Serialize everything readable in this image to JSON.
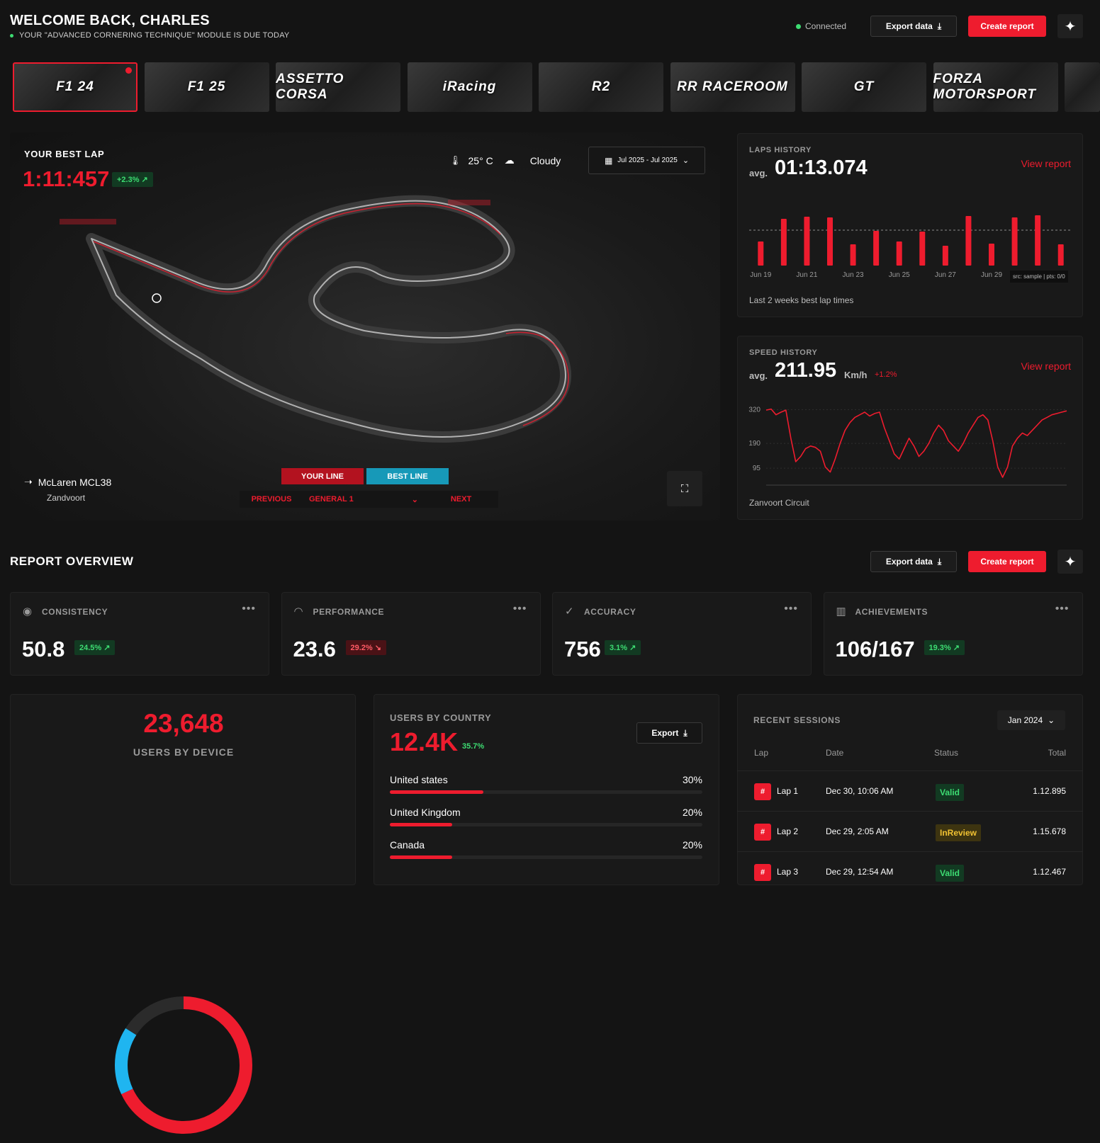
{
  "header": {
    "title": "WELCOME BACK, CHARLES",
    "subtitle": "YOUR \"ADVANCED CORNERING TECHNIQUE\" MODULE IS DUE TODAY",
    "status": "Connected",
    "export_label": "Export data",
    "create_label": "Create report"
  },
  "games": [
    "F1 24",
    "F1 25",
    "ASSETTO CORSA",
    "iRacing",
    "R2",
    "RR RACEROOM",
    "GT",
    "FORZA MOTORSPORT"
  ],
  "best_lap": {
    "title": "YOUR BEST LAP",
    "time": "1:11:457",
    "delta": "+2.3% ↗",
    "temperature": "25° C",
    "weather": "Cloudy",
    "date_range": "Jul 2025 - Jul 2025",
    "car": "McLaren MCL38",
    "circuit": "Zandvoort",
    "your_line": "YOUR LINE",
    "best_line": "BEST LINE",
    "previous": "PREVIOUS",
    "general": "GENERAL 1",
    "next": "NEXT"
  },
  "laps_history": {
    "title": "LAPS HISTORY",
    "avg_label": "avg.",
    "avg_value": "01:13.074",
    "view_report": "View report",
    "footer": "Last 2 weeks best lap times",
    "source": "src: sample | pts: 0/0",
    "chart_data": {
      "type": "bar",
      "x_tick_labels": [
        "Jun 19",
        "Jun 21",
        "Jun 23",
        "Jun 25",
        "Jun 27",
        "Jun 29"
      ],
      "values": [
        34,
        66,
        69,
        68,
        30,
        49,
        34,
        48,
        28,
        70,
        31,
        68,
        71,
        30
      ],
      "ylim": [
        0,
        80
      ],
      "reference_line": 50
    }
  },
  "speed_history": {
    "title": "SPEED HISTORY",
    "avg_label": "avg.",
    "avg_value": "211.95",
    "unit": "Km/h",
    "delta": "+1.2%",
    "view_report": "View report",
    "footer": "Zanvoort Circuit",
    "chart_data": {
      "type": "line",
      "y_tick_labels": [
        "320",
        "190",
        "95"
      ],
      "ylim": [
        30,
        340
      ],
      "values": [
        318,
        322,
        300,
        310,
        318,
        210,
        120,
        140,
        170,
        180,
        175,
        160,
        100,
        80,
        130,
        190,
        240,
        270,
        290,
        300,
        310,
        295,
        305,
        310,
        250,
        200,
        150,
        130,
        170,
        210,
        180,
        140,
        160,
        190,
        230,
        260,
        240,
        200,
        180,
        160,
        190,
        230,
        260,
        290,
        300,
        280,
        200,
        100,
        60,
        100,
        180,
        210,
        230,
        220,
        240,
        260,
        280,
        290,
        300,
        305,
        310,
        315
      ]
    }
  },
  "report_overview": {
    "title": "REPORT OVERVIEW",
    "export_label": "Export data",
    "create_label": "Create report",
    "stats": [
      {
        "label": "CONSISTENCY",
        "icon": "eye-icon",
        "glyph": "◉",
        "value": "50.8",
        "delta": "24.5% ↗",
        "trend": "up"
      },
      {
        "label": "PERFORMANCE",
        "icon": "gauge-icon",
        "glyph": "◠",
        "value": "23.6",
        "delta": "29.2% ↘",
        "trend": "down"
      },
      {
        "label": "ACCURACY",
        "icon": "check-circle-icon",
        "glyph": "✓",
        "value": "756",
        "delta": "3.1% ↗",
        "trend": "up"
      },
      {
        "label": "ACHIEVEMENTS",
        "icon": "bar-chart-icon",
        "glyph": "▥",
        "value": "106/167",
        "delta": "19.3% ↗",
        "trend": "up"
      }
    ]
  },
  "users_by_device": {
    "total": "23,648",
    "label": "USERS BY DEVICE",
    "segments": [
      {
        "color": "#ee1c2e",
        "fraction": 0.68
      },
      {
        "color": "#1fb5f0",
        "fraction": 0.16
      },
      {
        "color": "#2b2b2b",
        "fraction": 0.16
      }
    ]
  },
  "users_by_country": {
    "title": "USERS BY COUNTRY",
    "total": "12.4K",
    "delta": "35.7%",
    "export_label": "Export",
    "rows": [
      {
        "name": "United states",
        "pct": "30%",
        "fraction": 0.3
      },
      {
        "name": "United Kingdom",
        "pct": "20%",
        "fraction": 0.2
      },
      {
        "name": "Canada",
        "pct": "20%",
        "fraction": 0.2
      }
    ]
  },
  "recent_sessions": {
    "title": "RECENT SESSIONS",
    "month": "Jan 2024",
    "columns": [
      "Lap",
      "Date",
      "Status",
      "Total"
    ],
    "rows": [
      {
        "hash": "#",
        "lap": "Lap 1",
        "date": "Dec 30, 10:06 AM",
        "status": "Valid",
        "total": "1.12.895"
      },
      {
        "hash": "#",
        "lap": "Lap 2",
        "date": "Dec 29, 2:05 AM",
        "status": "InReview",
        "total": "1.15.678"
      },
      {
        "hash": "#",
        "lap": "Lap 3",
        "date": "Dec 29, 12:54 AM",
        "status": "Valid",
        "total": "1.12.467"
      }
    ]
  },
  "colors": {
    "accent": "#ee1c2e",
    "cyan": "#1fb5f0",
    "green": "#3ddc72"
  }
}
